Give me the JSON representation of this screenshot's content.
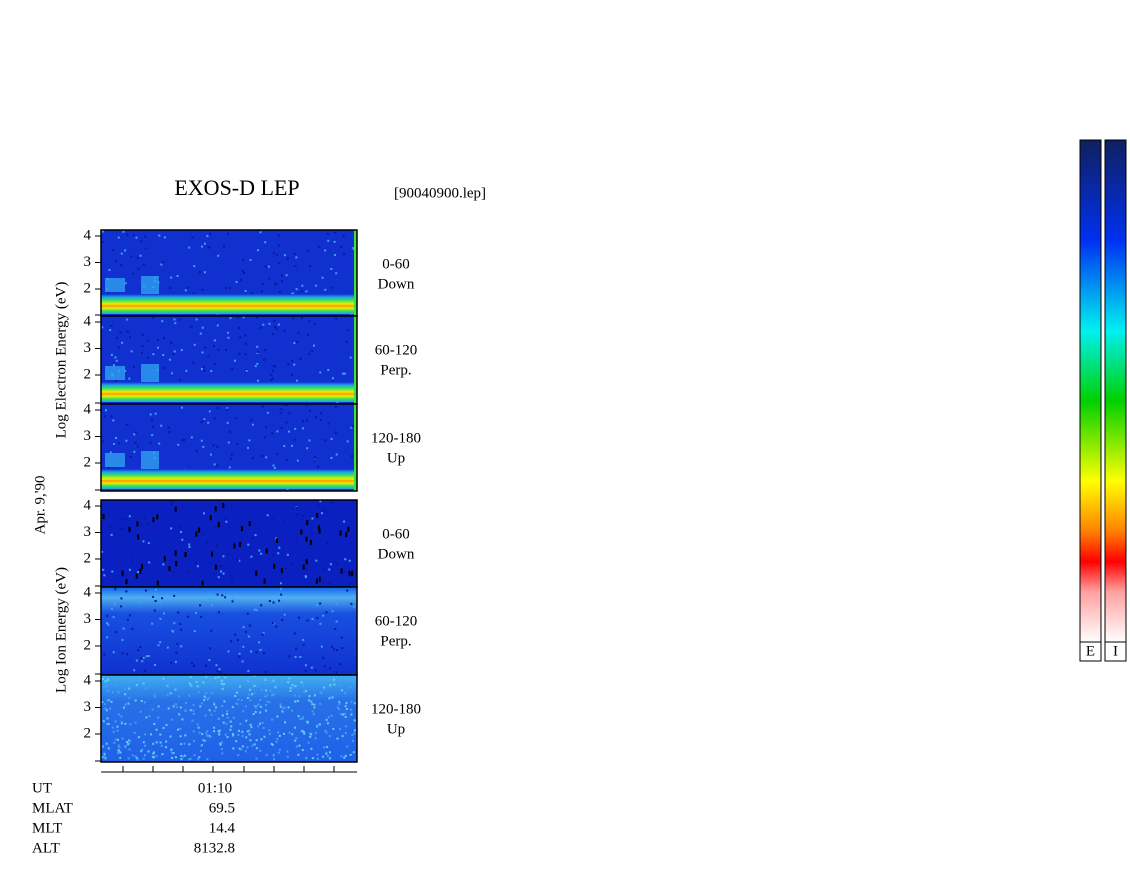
{
  "title": "EXOS-D LEP",
  "file": "[90040900.lep]",
  "date": "Apr. 9,'90",
  "electron_label": "Log Electron Energy (eV)",
  "ion_label": "Log Ion Energy (eV)",
  "panels": [
    {
      "species": "electron",
      "angle": "0-60",
      "direction": "Down",
      "yticks": [
        4,
        3,
        2
      ]
    },
    {
      "species": "electron",
      "angle": "60-120",
      "direction": "Perp.",
      "yticks": [
        4,
        3,
        2
      ]
    },
    {
      "species": "electron",
      "angle": "120-180",
      "direction": "Up",
      "yticks": [
        4,
        3,
        2
      ]
    },
    {
      "species": "ion",
      "angle": "0-60",
      "direction": "Down",
      "yticks": [
        4,
        3,
        2
      ]
    },
    {
      "species": "ion",
      "angle": "60-120",
      "direction": "Perp.",
      "yticks": [
        4,
        3,
        2
      ]
    },
    {
      "species": "ion",
      "angle": "120-180",
      "direction": "Up",
      "yticks": [
        4,
        3,
        2
      ]
    }
  ],
  "footer": [
    {
      "label": "UT",
      "value": "01:10"
    },
    {
      "label": "MLAT",
      "value": "69.5"
    },
    {
      "label": "MLT",
      "value": "14.4"
    },
    {
      "label": "ALT",
      "value": "8132.8"
    }
  ],
  "colorbars": [
    "E",
    "I"
  ]
}
